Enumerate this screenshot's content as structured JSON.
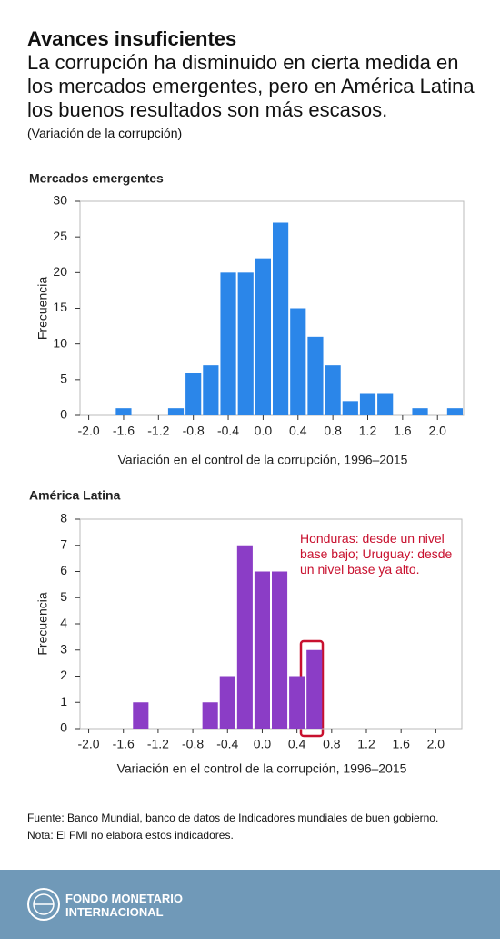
{
  "header": {
    "title": "Avances insuficientes",
    "subtitle": "La corrupción ha disminuido en cierta medida en los mercados emergentes, pero en América Latina los buenos resultados son más escasos.",
    "note": "(Variación de la corrupción)"
  },
  "chart_data": [
    {
      "type": "histogram",
      "title": "Mercados emergentes",
      "x_label": "Variación en el control de la corrupción, 1996–2015",
      "y_label": "Frecuencia",
      "color": "#2b86e9",
      "bins": [
        -1.7,
        -1.5,
        -1.3,
        -1.1,
        -0.9,
        -0.7,
        -0.5,
        -0.3,
        -0.1,
        0.1,
        0.3,
        0.5,
        0.7,
        0.9,
        1.1,
        1.3,
        1.5,
        1.7,
        1.9,
        2.1,
        2.3
      ],
      "counts": [
        1,
        0,
        0,
        1,
        6,
        7,
        20,
        20,
        22,
        27,
        15,
        11,
        7,
        2,
        3,
        3,
        0,
        1,
        0,
        1
      ],
      "xlim": [
        -2.1,
        2.3
      ],
      "ylim": [
        0,
        30
      ],
      "xticks": [
        {
          "value": -2,
          "label": "-2.0"
        },
        -1.6,
        -1.2,
        -0.8,
        -0.4,
        {
          "value": 0,
          "label": "0.0"
        },
        0.4,
        0.8,
        1.2,
        1.6,
        {
          "value": 2,
          "label": "2.0"
        }
      ],
      "yticks": [
        0,
        5,
        10,
        15,
        20,
        25,
        30
      ]
    },
    {
      "type": "histogram",
      "title": "América Latina",
      "x_label": "Variación en el control de la corrupción, 1996–2015",
      "y_label": "Frecuencia",
      "color": "#8b3dc6",
      "bins": [
        -1.5,
        -1.3,
        -1.1,
        -0.9,
        -0.7,
        -0.5,
        -0.3,
        -0.1,
        0.1,
        0.3,
        0.5,
        0.7
      ],
      "counts": [
        1,
        0,
        0,
        0,
        1,
        2,
        7,
        6,
        6,
        2,
        3
      ],
      "xlim": [
        -2.1,
        2.3
      ],
      "ylim": [
        0,
        8
      ],
      "xticks": [
        {
          "value": -2,
          "label": "-2.0"
        },
        -1.6,
        -1.2,
        -0.8,
        -0.4,
        {
          "value": 0,
          "label": "0.0"
        },
        0.4,
        0.8,
        1.2,
        1.6,
        {
          "value": 2,
          "label": "2.0"
        }
      ],
      "yticks": [
        0,
        1,
        2,
        3,
        4,
        5,
        6,
        7,
        8
      ],
      "annotation": "Honduras: desde un nivel base bajo; Uruguay: desde un nivel base ya alto."
    }
  ],
  "footer": {
    "source": "Fuente: Banco Mundial, banco de datos de Indicadores mundiales de buen gobierno.",
    "note": "Nota: El FMI no elabora estos indicadores.",
    "logo": "FONDO MONETARIO INTERNACIONAL"
  }
}
